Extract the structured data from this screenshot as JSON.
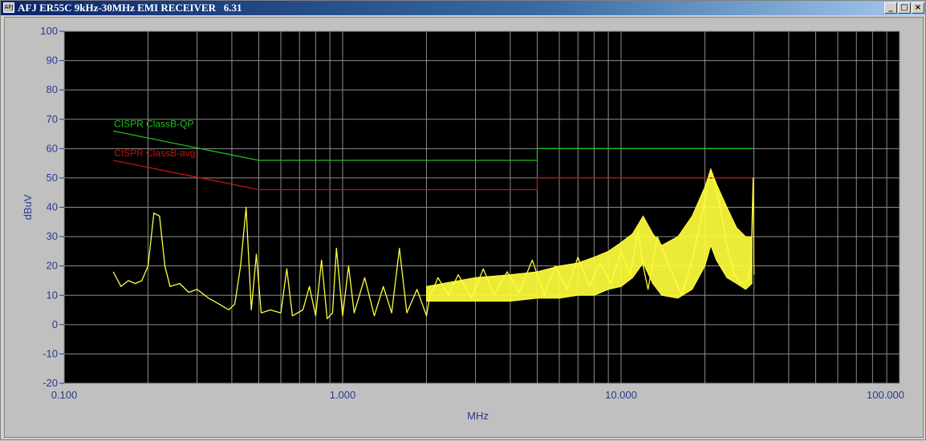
{
  "window": {
    "icon_text": "AFJ",
    "title": "AFJ ER55C 9kHz-30MHz EMI RECEIVER   6.31",
    "minimize_glyph": "_",
    "maximize_glyph": "□",
    "close_glyph": "×"
  },
  "colors": {
    "plot_background": "#000000",
    "grid": "#8c8c8c",
    "trace": "#ffff3c",
    "qp_limit": "#1fbf1f",
    "avg_limit": "#c41414",
    "axis_text": "#2b3a8c"
  },
  "chart_data": {
    "type": "line",
    "title": "",
    "xlabel": "MHz",
    "ylabel": "dBuV",
    "x_scale": "log",
    "xlim": [
      0.1,
      100
    ],
    "ylim": [
      -20,
      100
    ],
    "grid": true,
    "x_ticks": [
      "0.100",
      "1.000",
      "10.000",
      "100.000"
    ],
    "y_ticks": [
      "100",
      "90",
      "80",
      "70",
      "60",
      "50",
      "40",
      "30",
      "20",
      "10",
      "0",
      "-10",
      "-20"
    ],
    "limit_lines": [
      {
        "name": "CISPR ClassB-QP",
        "color": "#1fbf1f",
        "points": [
          [
            0.15,
            66
          ],
          [
            0.5,
            56
          ],
          [
            5,
            56
          ],
          [
            5,
            60
          ],
          [
            30,
            60
          ]
        ]
      },
      {
        "name": "CISPR ClassB-avg",
        "color": "#c41414",
        "points": [
          [
            0.15,
            56
          ],
          [
            0.5,
            46
          ],
          [
            5,
            46
          ],
          [
            5,
            50
          ],
          [
            30,
            50
          ]
        ]
      }
    ],
    "trace": {
      "color": "#ffff3c",
      "points": [
        [
          0.15,
          18
        ],
        [
          0.16,
          13
        ],
        [
          0.17,
          15
        ],
        [
          0.18,
          14
        ],
        [
          0.19,
          15
        ],
        [
          0.2,
          20
        ],
        [
          0.21,
          38
        ],
        [
          0.22,
          37
        ],
        [
          0.23,
          20
        ],
        [
          0.24,
          13
        ],
        [
          0.26,
          14
        ],
        [
          0.28,
          11
        ],
        [
          0.3,
          12
        ],
        [
          0.33,
          9
        ],
        [
          0.36,
          7
        ],
        [
          0.39,
          5
        ],
        [
          0.41,
          7
        ],
        [
          0.43,
          20
        ],
        [
          0.45,
          40
        ],
        [
          0.47,
          5
        ],
        [
          0.49,
          24
        ],
        [
          0.51,
          4
        ],
        [
          0.55,
          5
        ],
        [
          0.6,
          4
        ],
        [
          0.63,
          19
        ],
        [
          0.66,
          3
        ],
        [
          0.72,
          5
        ],
        [
          0.76,
          13
        ],
        [
          0.8,
          3
        ],
        [
          0.84,
          22
        ],
        [
          0.88,
          2
        ],
        [
          0.92,
          4
        ],
        [
          0.95,
          26
        ],
        [
          1.0,
          3
        ],
        [
          1.05,
          20
        ],
        [
          1.1,
          4
        ],
        [
          1.2,
          16
        ],
        [
          1.3,
          3
        ],
        [
          1.4,
          13
        ],
        [
          1.5,
          4
        ],
        [
          1.6,
          26
        ],
        [
          1.7,
          4
        ],
        [
          1.85,
          12
        ],
        [
          2.0,
          3
        ],
        [
          2.05,
          9
        ],
        [
          2.2,
          16
        ],
        [
          2.4,
          10
        ],
        [
          2.6,
          17
        ],
        [
          2.9,
          9
        ],
        [
          3.2,
          19
        ],
        [
          3.5,
          10
        ],
        [
          3.9,
          18
        ],
        [
          4.3,
          11
        ],
        [
          4.8,
          22
        ],
        [
          5.3,
          10
        ],
        [
          5.8,
          20
        ],
        [
          6.4,
          12
        ],
        [
          7.0,
          23
        ],
        [
          7.7,
          13
        ],
        [
          8.4,
          21
        ],
        [
          9.2,
          14
        ],
        [
          10.0,
          25
        ],
        [
          10.8,
          17
        ],
        [
          11.5,
          32
        ],
        [
          12.0,
          20
        ],
        [
          12.5,
          12
        ],
        [
          13.5,
          30
        ],
        [
          15.0,
          19
        ],
        [
          16.5,
          10
        ],
        [
          18.0,
          22
        ],
        [
          19.5,
          37
        ],
        [
          21.0,
          53
        ],
        [
          22.5,
          42
        ],
        [
          24.0,
          27
        ],
        [
          25.5,
          17
        ],
        [
          27.0,
          14
        ],
        [
          28.5,
          15
        ],
        [
          29.3,
          20
        ],
        [
          29.8,
          50
        ],
        [
          30.0,
          17
        ]
      ],
      "envelope_upper": [
        [
          2.0,
          13
        ],
        [
          3.0,
          16
        ],
        [
          4.0,
          17
        ],
        [
          5.0,
          18
        ],
        [
          6.0,
          20
        ],
        [
          7.0,
          21
        ],
        [
          8.0,
          23
        ],
        [
          9.0,
          25
        ],
        [
          10.0,
          28
        ],
        [
          11.0,
          31
        ],
        [
          12.0,
          37
        ],
        [
          13.0,
          31
        ],
        [
          14.0,
          27
        ],
        [
          16.0,
          30
        ],
        [
          18.0,
          37
        ],
        [
          20.0,
          47
        ],
        [
          21.0,
          53
        ],
        [
          22.0,
          48
        ],
        [
          24.0,
          40
        ],
        [
          26.0,
          33
        ],
        [
          28.0,
          30
        ],
        [
          29.5,
          30
        ]
      ],
      "envelope_lower": [
        [
          2.0,
          8
        ],
        [
          3.0,
          8
        ],
        [
          4.0,
          8
        ],
        [
          5.0,
          9
        ],
        [
          6.0,
          9
        ],
        [
          7.0,
          10
        ],
        [
          8.0,
          10
        ],
        [
          9.0,
          12
        ],
        [
          10.0,
          13
        ],
        [
          11.0,
          16
        ],
        [
          12.0,
          21
        ],
        [
          13.0,
          14
        ],
        [
          14.0,
          10
        ],
        [
          16.0,
          9
        ],
        [
          18.0,
          12
        ],
        [
          20.0,
          20
        ],
        [
          21.0,
          27
        ],
        [
          22.0,
          22
        ],
        [
          24.0,
          16
        ],
        [
          26.0,
          14
        ],
        [
          28.0,
          12
        ],
        [
          29.5,
          14
        ]
      ]
    }
  }
}
